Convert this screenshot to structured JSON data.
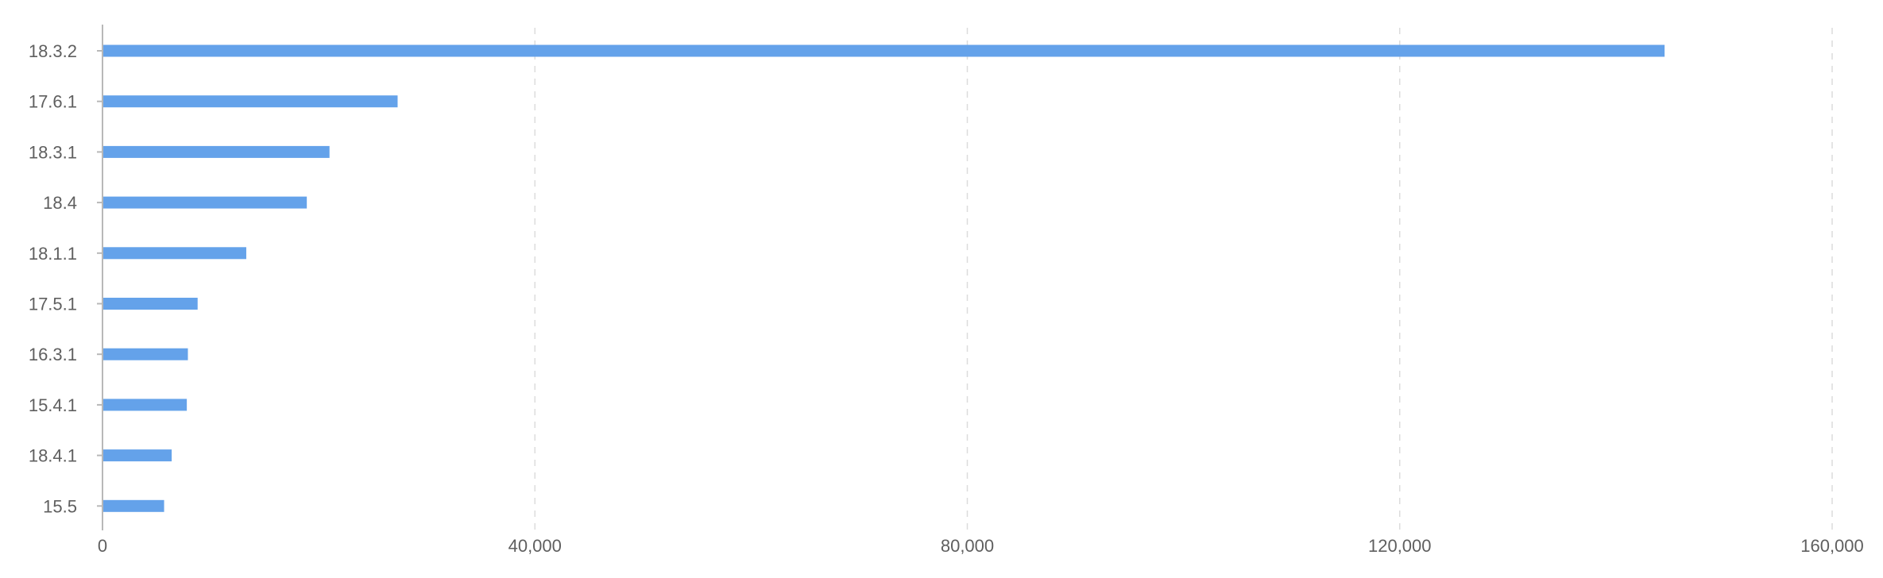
{
  "chart_data": {
    "type": "bar",
    "orientation": "horizontal",
    "categories": [
      "18.3.2",
      "17.6.1",
      "18.3.1",
      "18.4",
      "18.1.1",
      "17.5.1",
      "16.3.1",
      "15.4.1",
      "18.4.1",
      "15.5"
    ],
    "series": [
      {
        "values": [
          144500,
          27300,
          21000,
          18900,
          13300,
          8800,
          7900,
          7800,
          6400,
          5700
        ]
      }
    ],
    "xlim": [
      0,
      160000
    ],
    "xticks": [
      0,
      40000,
      80000,
      120000,
      160000
    ],
    "xtick_labels": [
      "0",
      "40,000",
      "80,000",
      "120,000",
      "160,000"
    ],
    "grid": "vertical dashed",
    "legend": "none",
    "title": "",
    "xlabel": "",
    "ylabel": "",
    "colors": {
      "bar": "#64a2ea"
    }
  }
}
